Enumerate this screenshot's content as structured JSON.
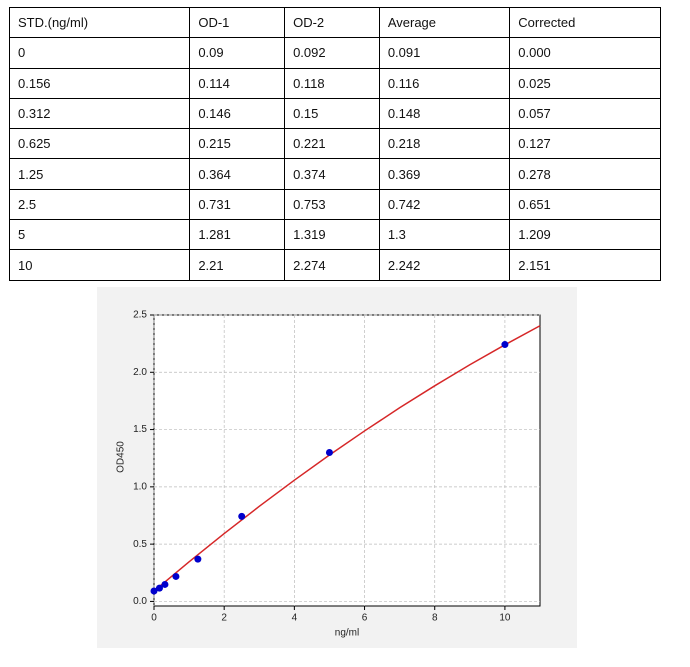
{
  "table": {
    "header": [
      "STD.(ng/ml)",
      "OD-1",
      "OD-2",
      "Average",
      "Corrected"
    ],
    "rows": [
      [
        "0",
        "0.09",
        "0.092",
        "0.091",
        "0.000"
      ],
      [
        "0.156",
        "0.114",
        "0.118",
        "0.116",
        "0.025"
      ],
      [
        "0.312",
        "0.146",
        "0.15",
        "0.148",
        "0.057"
      ],
      [
        "0.625",
        "0.215",
        "0.221",
        "0.218",
        "0.127"
      ],
      [
        "1.25",
        "0.364",
        "0.374",
        "0.369",
        "0.278"
      ],
      [
        "2.5",
        "0.731",
        "0.753",
        "0.742",
        "0.651"
      ],
      [
        "5",
        "1.281",
        "1.319",
        "1.3",
        "1.209"
      ],
      [
        "10",
        "2.21",
        "2.274",
        "2.242",
        "2.151"
      ]
    ]
  },
  "chart_data": {
    "type": "scatter",
    "x_label": "ng/ml",
    "y_label": "OD450",
    "x": [
      0,
      0.156,
      0.312,
      0.625,
      1.25,
      2.5,
      5,
      10
    ],
    "series": [
      {
        "color": "#0000cc",
        "values": [
          0.091,
          0.116,
          0.148,
          0.218,
          0.369,
          0.742,
          1.3,
          2.242
        ]
      },
      {
        "color": "#d62728",
        "x": [
          0,
          1,
          2,
          3,
          4,
          5,
          6,
          7,
          8,
          9,
          10,
          11
        ],
        "values": [
          0.09,
          0.346,
          0.592,
          0.83,
          1.058,
          1.278,
          1.488,
          1.69,
          1.882,
          2.066,
          2.24,
          2.406
        ]
      }
    ],
    "xlim": [
      0,
      11
    ],
    "xticks": [
      0,
      2,
      4,
      6,
      8,
      10
    ],
    "ylim": [
      -0.04,
      2.5
    ],
    "yticks": [
      {
        "value": 0,
        "label": "0.0"
      },
      {
        "value": 0.5,
        "label": "0.5"
      },
      {
        "value": 1,
        "label": "1.0"
      },
      {
        "value": 1.5,
        "label": "1.5"
      },
      {
        "value": 2,
        "label": "2.0"
      },
      {
        "value": 2.5,
        "label": "2.5"
      }
    ],
    "grid": true
  }
}
